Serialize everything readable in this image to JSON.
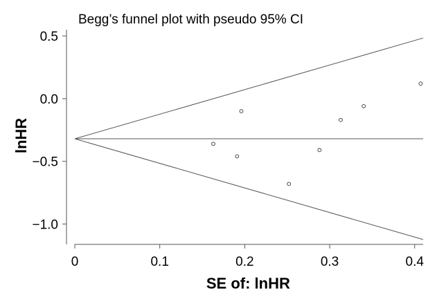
{
  "chart_data": {
    "type": "scatter",
    "title": "Begg’s funnel plot with pseudo 95% CI",
    "xlabel": "SE of: lnHR",
    "ylabel": "lnHR",
    "xlim": [
      0,
      0.41
    ],
    "ylim": [
      -1.14,
      0.55
    ],
    "x_ticks": [
      0,
      0.1,
      0.2,
      0.3,
      0.4
    ],
    "x_tick_labels": [
      "0",
      "0.1",
      "0.2",
      "0.3",
      "0.4"
    ],
    "y_ticks": [
      0.5,
      0.0,
      -0.5,
      -1.0
    ],
    "y_tick_labels": [
      "0.5",
      "0.0",
      "−0.5",
      "−1.0"
    ],
    "pooled_estimate": -0.32,
    "ci_multiplier": 1.96,
    "grid": false,
    "legend": "none",
    "series": [
      {
        "x": [
          0.163,
          0.191,
          0.196,
          0.252,
          0.288,
          0.313,
          0.34,
          0.407
        ],
        "y": [
          -0.36,
          -0.46,
          -0.1,
          -0.68,
          -0.41,
          -0.17,
          -0.06,
          0.12
        ]
      }
    ],
    "colors": {
      "lines": "#555555",
      "points": "#333333",
      "background": "#ffffff"
    }
  }
}
